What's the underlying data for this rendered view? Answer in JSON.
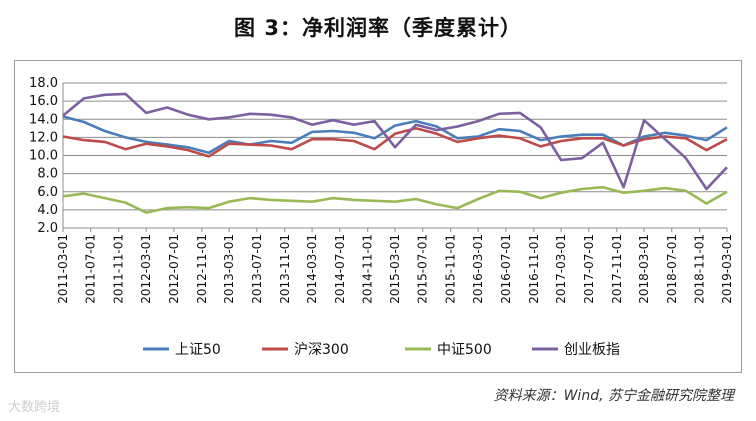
{
  "title": "图 3：净利润率（季度累计）",
  "source": "资料来源：Wind, 苏宁金融研究院整理",
  "watermark": "大数跨境",
  "chart_data": {
    "type": "line",
    "title": "图 3：净利润率（季度累计）",
    "ylim": [
      2.0,
      18.0
    ],
    "yticks": [
      "2.0",
      "4.0",
      "6.0",
      "8.0",
      "10.0",
      "12.0",
      "14.0",
      "16.0",
      "18.0"
    ],
    "grid": true,
    "legend_position": "bottom",
    "x": [
      "2011-03-01",
      "2011-06-01",
      "2011-09-01",
      "2011-12-01",
      "2012-03-01",
      "2012-06-01",
      "2012-09-01",
      "2012-12-01",
      "2013-03-01",
      "2013-06-01",
      "2013-09-01",
      "2013-12-01",
      "2014-03-01",
      "2014-06-01",
      "2014-09-01",
      "2014-12-01",
      "2015-03-01",
      "2015-06-01",
      "2015-09-01",
      "2015-12-01",
      "2016-03-01",
      "2016-06-01",
      "2016-09-01",
      "2016-12-01",
      "2017-03-01",
      "2017-06-01",
      "2017-09-01",
      "2017-12-01",
      "2018-03-01",
      "2018-06-01",
      "2018-09-01",
      "2018-12-01",
      "2019-03-01"
    ],
    "tick_labels": [
      "2011-03-01",
      "2011-07-01",
      "2011-11-01",
      "2012-03-01",
      "2012-07-01",
      "2012-11-01",
      "2013-03-01",
      "2013-07-01",
      "2013-11-01",
      "2014-03-01",
      "2014-07-01",
      "2014-11-01",
      "2015-03-01",
      "2015-07-01",
      "2015-11-01",
      "2016-03-01",
      "2016-07-01",
      "2016-11-01",
      "2017-03-01",
      "2017-07-01",
      "2017-11-01",
      "2018-03-01",
      "2018-07-01",
      "2018-11-01",
      "2019-03-01"
    ],
    "series": [
      {
        "name": "上证50",
        "color": "#4a7ebb",
        "values": [
          14.3,
          13.7,
          12.7,
          12.0,
          11.5,
          11.2,
          10.9,
          10.3,
          11.6,
          11.2,
          11.6,
          11.4,
          12.6,
          12.7,
          12.5,
          11.9,
          13.3,
          13.8,
          13.2,
          11.9,
          12.1,
          12.9,
          12.7,
          11.7,
          12.1,
          12.3,
          12.3,
          11.1,
          12.1,
          12.5,
          12.2,
          11.7,
          13.1
        ]
      },
      {
        "name": "沪深300",
        "color": "#be4b48",
        "values": [
          12.1,
          11.7,
          11.5,
          10.7,
          11.3,
          11.0,
          10.6,
          9.9,
          11.3,
          11.2,
          11.1,
          10.7,
          11.8,
          11.8,
          11.6,
          10.7,
          12.4,
          13.0,
          12.4,
          11.5,
          11.9,
          12.2,
          11.9,
          11.0,
          11.6,
          11.9,
          11.9,
          11.1,
          11.8,
          12.1,
          11.9,
          10.6,
          11.8
        ]
      },
      {
        "name": "中证500",
        "color": "#98b954",
        "values": [
          5.5,
          5.8,
          5.3,
          4.8,
          3.7,
          4.2,
          4.3,
          4.2,
          4.9,
          5.3,
          5.1,
          5.0,
          4.9,
          5.3,
          5.1,
          5.0,
          4.9,
          5.2,
          4.6,
          4.2,
          5.2,
          6.1,
          6.0,
          5.3,
          5.9,
          6.3,
          6.5,
          5.9,
          6.1,
          6.4,
          6.1,
          4.7,
          6.0
        ]
      },
      {
        "name": "创业板指",
        "color": "#7d60a0",
        "values": [
          14.4,
          16.3,
          16.7,
          16.8,
          14.7,
          15.3,
          14.5,
          14.0,
          14.2,
          14.6,
          14.5,
          14.2,
          13.4,
          13.9,
          13.4,
          13.8,
          10.9,
          13.4,
          12.8,
          13.2,
          13.8,
          14.6,
          14.7,
          13.1,
          9.5,
          9.7,
          11.4,
          6.5,
          13.9,
          11.8,
          9.7,
          6.3,
          8.7
        ]
      }
    ]
  }
}
